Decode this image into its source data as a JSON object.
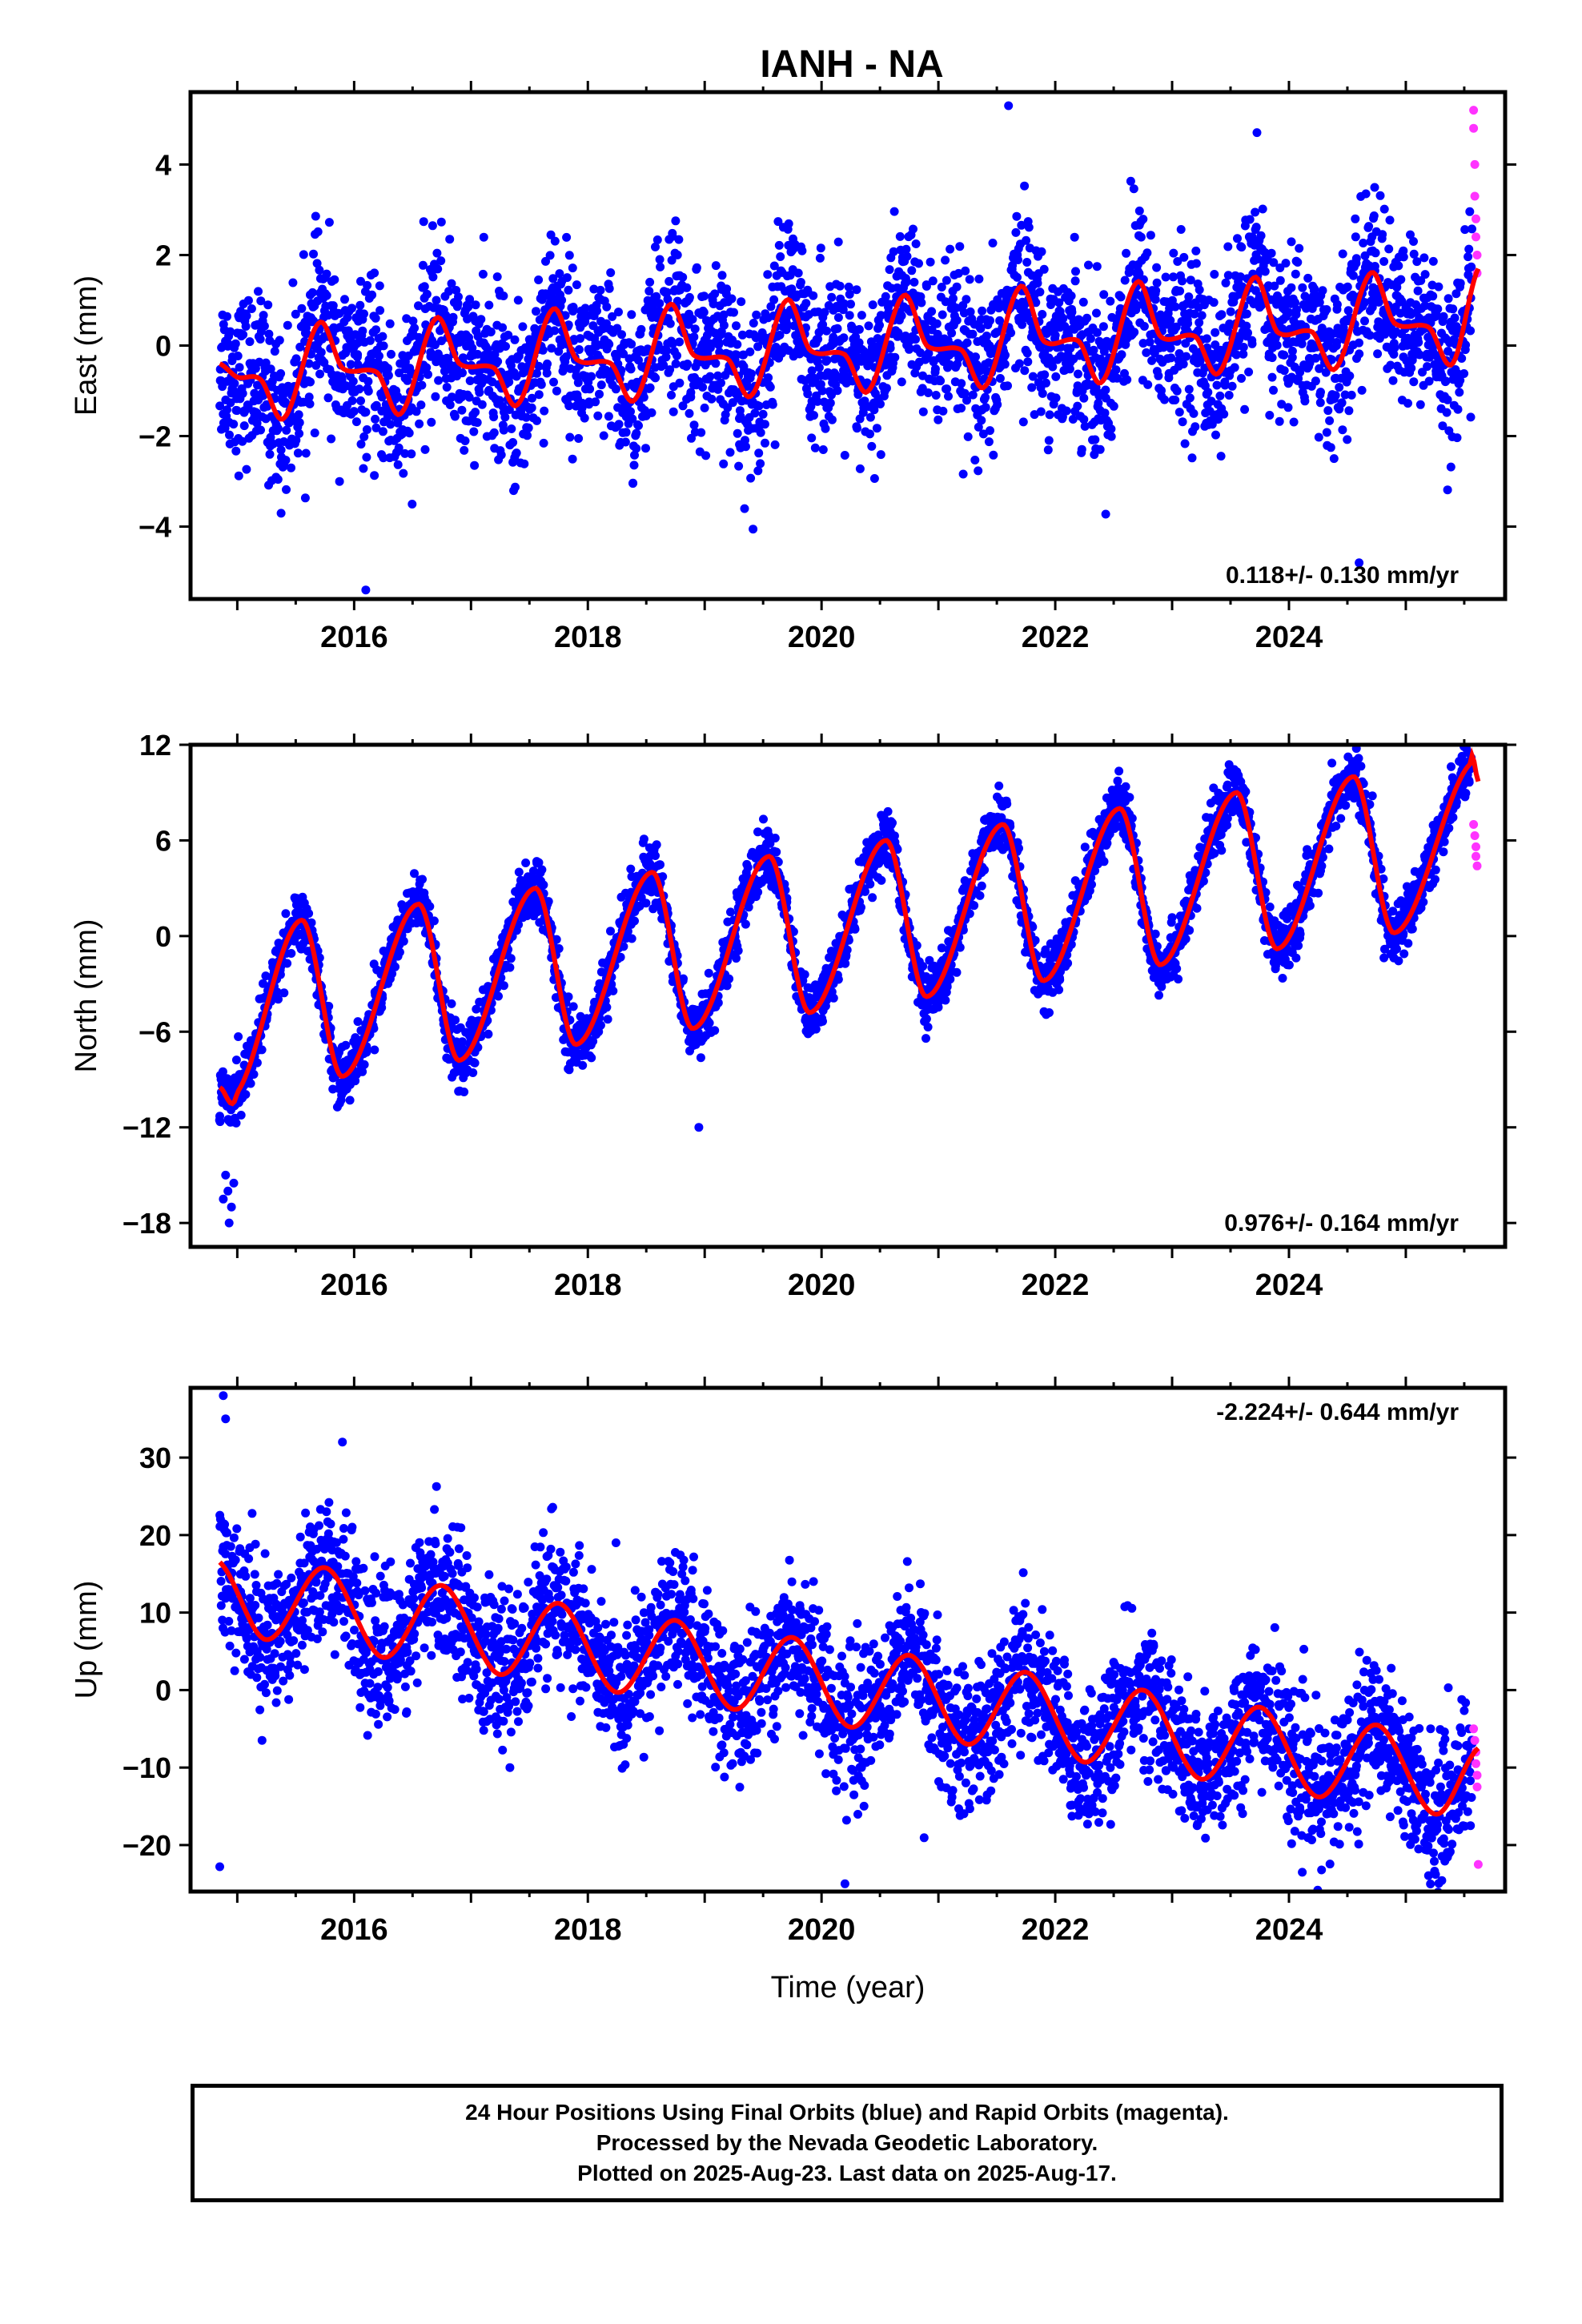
{
  "title": "IANH - NA",
  "colors": {
    "final_orbits": "#0000ff",
    "rapid_orbits": "#ff33ff",
    "model_fit": "#ff0000",
    "frame": "#000000"
  },
  "footer": {
    "line1": "24 Hour Positions Using Final Orbits (blue) and Rapid Orbits (magenta).",
    "line2": "Processed by the Nevada Geodetic Laboratory.",
    "line3": "Plotted on 2025-Aug-23. Last data on 2025-Aug-17."
  },
  "chart_data": [
    {
      "type": "scatter",
      "ylabel": "East (mm)",
      "xlabel": "",
      "rate_label": "0.118+/- 0.130 mm/yr",
      "xlim": [
        2014.6,
        2025.85
      ],
      "ylim": [
        -5.6,
        5.6
      ],
      "xticks": [
        2016,
        2018,
        2020,
        2022,
        2024
      ],
      "yticks": [
        -4,
        -2,
        0,
        2,
        4
      ],
      "grid": false,
      "model": {
        "start": 2014.85,
        "end": 2025.62,
        "trend_mm_per_yr": 0.118,
        "annual_amplitude_mm": 0.8,
        "semiannual_amplitude_mm": 0.35,
        "scatter_sigma_mm": 0.9,
        "level_at_start_mm": -0.6,
        "samples": [
          {
            "x": 2014.85,
            "y": -0.4
          },
          {
            "x": 2015.0,
            "y": -0.7
          },
          {
            "x": 2015.2,
            "y": -0.75
          },
          {
            "x": 2015.4,
            "y": -1.6
          },
          {
            "x": 2015.7,
            "y": 0.5
          },
          {
            "x": 2015.9,
            "y": -0.5
          },
          {
            "x": 2016.2,
            "y": -0.6
          },
          {
            "x": 2016.4,
            "y": -1.5
          },
          {
            "x": 2016.7,
            "y": 0.6
          },
          {
            "x": 2016.9,
            "y": -0.4
          },
          {
            "x": 2017.2,
            "y": -0.5
          },
          {
            "x": 2017.4,
            "y": -1.3
          },
          {
            "x": 2017.7,
            "y": 0.8
          },
          {
            "x": 2017.9,
            "y": -0.3
          },
          {
            "x": 2018.2,
            "y": -0.4
          },
          {
            "x": 2018.4,
            "y": -1.2
          },
          {
            "x": 2018.7,
            "y": 0.9
          },
          {
            "x": 2018.9,
            "y": -0.2
          },
          {
            "x": 2019.2,
            "y": -0.3
          },
          {
            "x": 2019.4,
            "y": -1.1
          },
          {
            "x": 2019.7,
            "y": 1.0
          },
          {
            "x": 2019.9,
            "y": -0.1
          },
          {
            "x": 2020.2,
            "y": -0.2
          },
          {
            "x": 2020.4,
            "y": -1.0
          },
          {
            "x": 2020.7,
            "y": 1.1
          },
          {
            "x": 2020.9,
            "y": 0.0
          },
          {
            "x": 2021.2,
            "y": -0.1
          },
          {
            "x": 2021.4,
            "y": -0.9
          },
          {
            "x": 2021.7,
            "y": 1.3
          },
          {
            "x": 2021.9,
            "y": 0.1
          },
          {
            "x": 2022.2,
            "y": 0.1
          },
          {
            "x": 2022.4,
            "y": -0.8
          },
          {
            "x": 2022.7,
            "y": 1.4
          },
          {
            "x": 2022.9,
            "y": 0.2
          },
          {
            "x": 2023.2,
            "y": 0.2
          },
          {
            "x": 2023.4,
            "y": -0.6
          },
          {
            "x": 2023.7,
            "y": 1.5
          },
          {
            "x": 2023.9,
            "y": 0.3
          },
          {
            "x": 2024.2,
            "y": 0.3
          },
          {
            "x": 2024.4,
            "y": -0.5
          },
          {
            "x": 2024.7,
            "y": 1.6
          },
          {
            "x": 2024.9,
            "y": 0.5
          },
          {
            "x": 2025.2,
            "y": 0.4
          },
          {
            "x": 2025.4,
            "y": -0.4
          },
          {
            "x": 2025.62,
            "y": 1.7
          }
        ]
      },
      "notable_points": [
        {
          "x": 2016.1,
          "y": -5.4
        },
        {
          "x": 2021.6,
          "y": 5.3
        },
        {
          "x": 2024.6,
          "y": -4.8
        }
      ],
      "rapid_points": [
        {
          "x": 2025.58,
          "y": 5.2
        },
        {
          "x": 2025.58,
          "y": 4.8
        },
        {
          "x": 2025.59,
          "y": 4.0
        },
        {
          "x": 2025.59,
          "y": 3.3
        },
        {
          "x": 2025.6,
          "y": 2.8
        },
        {
          "x": 2025.6,
          "y": 2.4
        },
        {
          "x": 2025.61,
          "y": 2.0
        },
        {
          "x": 2025.61,
          "y": 1.6
        }
      ]
    },
    {
      "type": "scatter",
      "ylabel": "North (mm)",
      "xlabel": "",
      "rate_label": "0.976+/- 0.164 mm/yr",
      "xlim": [
        2014.6,
        2025.85
      ],
      "ylim": [
        -19.5,
        12.0
      ],
      "xticks": [
        2016,
        2018,
        2020,
        2022,
        2024
      ],
      "yticks": [
        -18,
        -12,
        -6,
        0,
        6,
        12
      ],
      "grid": false,
      "model": {
        "start": 2014.85,
        "end": 2025.62,
        "samples": [
          {
            "x": 2014.85,
            "y": -9.5
          },
          {
            "x": 2015.0,
            "y": -9.8
          },
          {
            "x": 2015.55,
            "y": 1.0
          },
          {
            "x": 2015.9,
            "y": -8.8
          },
          {
            "x": 2016.55,
            "y": 2.0
          },
          {
            "x": 2016.9,
            "y": -7.8
          },
          {
            "x": 2017.55,
            "y": 3.0
          },
          {
            "x": 2017.9,
            "y": -6.8
          },
          {
            "x": 2018.55,
            "y": 4.0
          },
          {
            "x": 2018.9,
            "y": -5.8
          },
          {
            "x": 2019.55,
            "y": 5.0
          },
          {
            "x": 2019.9,
            "y": -4.8
          },
          {
            "x": 2020.55,
            "y": 6.0
          },
          {
            "x": 2020.9,
            "y": -3.8
          },
          {
            "x": 2021.55,
            "y": 7.0
          },
          {
            "x": 2021.9,
            "y": -2.8
          },
          {
            "x": 2022.55,
            "y": 8.0
          },
          {
            "x": 2022.9,
            "y": -1.8
          },
          {
            "x": 2023.55,
            "y": 9.0
          },
          {
            "x": 2023.9,
            "y": -0.8
          },
          {
            "x": 2024.55,
            "y": 10.0
          },
          {
            "x": 2024.9,
            "y": 0.2
          },
          {
            "x": 2025.55,
            "y": 10.8
          },
          {
            "x": 2025.62,
            "y": 9.7
          }
        ],
        "scatter_sigma_mm": 0.9
      },
      "notable_points": [
        {
          "x": 2014.85,
          "y": -11.3
        },
        {
          "x": 2014.9,
          "y": -15.0
        },
        {
          "x": 2014.92,
          "y": -16.0
        },
        {
          "x": 2014.95,
          "y": -17.0
        },
        {
          "x": 2014.88,
          "y": -16.5
        },
        {
          "x": 2014.93,
          "y": -18.0
        },
        {
          "x": 2014.97,
          "y": -15.5
        },
        {
          "x": 2018.95,
          "y": -12.0
        }
      ],
      "rapid_points": [
        {
          "x": 2025.58,
          "y": 7.0
        },
        {
          "x": 2025.59,
          "y": 6.3
        },
        {
          "x": 2025.6,
          "y": 5.6
        },
        {
          "x": 2025.6,
          "y": 5.0
        },
        {
          "x": 2025.61,
          "y": 4.4
        }
      ]
    },
    {
      "type": "scatter",
      "ylabel": "Up (mm)",
      "xlabel": "Time (year)",
      "rate_label": "-2.224+/- 0.644 mm/yr",
      "xlim": [
        2014.6,
        2025.85
      ],
      "ylim": [
        -26.0,
        39.0
      ],
      "xticks": [
        2016,
        2018,
        2020,
        2022,
        2024
      ],
      "yticks": [
        -20,
        -10,
        0,
        10,
        20,
        30
      ],
      "grid": false,
      "model": {
        "start": 2014.85,
        "end": 2025.62,
        "samples": [
          {
            "x": 2014.85,
            "y": 16.5
          },
          {
            "x": 2015.25,
            "y": 6.5
          },
          {
            "x": 2015.75,
            "y": 15.8
          },
          {
            "x": 2016.25,
            "y": 4.2
          },
          {
            "x": 2016.75,
            "y": 13.5
          },
          {
            "x": 2017.25,
            "y": 2.0
          },
          {
            "x": 2017.75,
            "y": 11.2
          },
          {
            "x": 2018.25,
            "y": -0.3
          },
          {
            "x": 2018.75,
            "y": 9.0
          },
          {
            "x": 2019.25,
            "y": -2.5
          },
          {
            "x": 2019.75,
            "y": 6.8
          },
          {
            "x": 2020.25,
            "y": -4.8
          },
          {
            "x": 2020.75,
            "y": 4.5
          },
          {
            "x": 2021.25,
            "y": -7.0
          },
          {
            "x": 2021.75,
            "y": 2.3
          },
          {
            "x": 2022.25,
            "y": -9.3
          },
          {
            "x": 2022.75,
            "y": 0.0
          },
          {
            "x": 2023.25,
            "y": -11.5
          },
          {
            "x": 2023.75,
            "y": -2.2
          },
          {
            "x": 2024.25,
            "y": -13.8
          },
          {
            "x": 2024.75,
            "y": -4.5
          },
          {
            "x": 2025.25,
            "y": -16.0
          },
          {
            "x": 2025.62,
            "y": -7.5
          }
        ],
        "scatter_sigma_mm": 4.5
      },
      "notable_points": [
        {
          "x": 2014.88,
          "y": 38.0
        },
        {
          "x": 2014.9,
          "y": 35.0
        },
        {
          "x": 2014.85,
          "y": -22.8
        },
        {
          "x": 2015.9,
          "y": 32.0
        },
        {
          "x": 2020.2,
          "y": -25.0
        }
      ],
      "rapid_points": [
        {
          "x": 2025.58,
          "y": -5.0
        },
        {
          "x": 2025.59,
          "y": -6.5
        },
        {
          "x": 2025.6,
          "y": -8.0
        },
        {
          "x": 2025.6,
          "y": -9.5
        },
        {
          "x": 2025.61,
          "y": -11.0
        },
        {
          "x": 2025.61,
          "y": -12.5
        },
        {
          "x": 2025.62,
          "y": -22.5
        }
      ]
    }
  ]
}
